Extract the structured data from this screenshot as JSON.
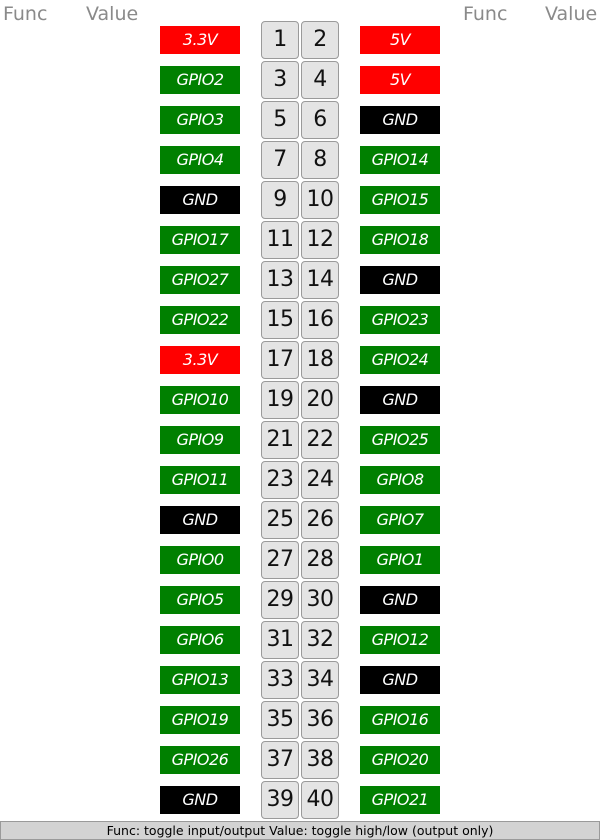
{
  "header": {
    "left_func": "Func",
    "left_value": "Value",
    "right_func": "Func",
    "right_value": "Value"
  },
  "colors": {
    "power": "#ff0000",
    "gpio": "#008000",
    "gnd": "#000000"
  },
  "pins": [
    {
      "left": {
        "label": "3.3V",
        "kind": "power",
        "pin": 1
      },
      "right": {
        "label": "5V",
        "kind": "power",
        "pin": 2
      }
    },
    {
      "left": {
        "label": "GPIO2",
        "kind": "gpio",
        "pin": 3
      },
      "right": {
        "label": "5V",
        "kind": "power",
        "pin": 4
      }
    },
    {
      "left": {
        "label": "GPIO3",
        "kind": "gpio",
        "pin": 5
      },
      "right": {
        "label": "GND",
        "kind": "gnd",
        "pin": 6
      }
    },
    {
      "left": {
        "label": "GPIO4",
        "kind": "gpio",
        "pin": 7
      },
      "right": {
        "label": "GPIO14",
        "kind": "gpio",
        "pin": 8
      }
    },
    {
      "left": {
        "label": "GND",
        "kind": "gnd",
        "pin": 9
      },
      "right": {
        "label": "GPIO15",
        "kind": "gpio",
        "pin": 10
      }
    },
    {
      "left": {
        "label": "GPIO17",
        "kind": "gpio",
        "pin": 11
      },
      "right": {
        "label": "GPIO18",
        "kind": "gpio",
        "pin": 12
      }
    },
    {
      "left": {
        "label": "GPIO27",
        "kind": "gpio",
        "pin": 13
      },
      "right": {
        "label": "GND",
        "kind": "gnd",
        "pin": 14
      }
    },
    {
      "left": {
        "label": "GPIO22",
        "kind": "gpio",
        "pin": 15
      },
      "right": {
        "label": "GPIO23",
        "kind": "gpio",
        "pin": 16
      }
    },
    {
      "left": {
        "label": "3.3V",
        "kind": "power",
        "pin": 17
      },
      "right": {
        "label": "GPIO24",
        "kind": "gpio",
        "pin": 18
      }
    },
    {
      "left": {
        "label": "GPIO10",
        "kind": "gpio",
        "pin": 19
      },
      "right": {
        "label": "GND",
        "kind": "gnd",
        "pin": 20
      }
    },
    {
      "left": {
        "label": "GPIO9",
        "kind": "gpio",
        "pin": 21
      },
      "right": {
        "label": "GPIO25",
        "kind": "gpio",
        "pin": 22
      }
    },
    {
      "left": {
        "label": "GPIO11",
        "kind": "gpio",
        "pin": 23
      },
      "right": {
        "label": "GPIO8",
        "kind": "gpio",
        "pin": 24
      }
    },
    {
      "left": {
        "label": "GND",
        "kind": "gnd",
        "pin": 25
      },
      "right": {
        "label": "GPIO7",
        "kind": "gpio",
        "pin": 26
      }
    },
    {
      "left": {
        "label": "GPIO0",
        "kind": "gpio",
        "pin": 27
      },
      "right": {
        "label": "GPIO1",
        "kind": "gpio",
        "pin": 28
      }
    },
    {
      "left": {
        "label": "GPIO5",
        "kind": "gpio",
        "pin": 29
      },
      "right": {
        "label": "GND",
        "kind": "gnd",
        "pin": 30
      }
    },
    {
      "left": {
        "label": "GPIO6",
        "kind": "gpio",
        "pin": 31
      },
      "right": {
        "label": "GPIO12",
        "kind": "gpio",
        "pin": 32
      }
    },
    {
      "left": {
        "label": "GPIO13",
        "kind": "gpio",
        "pin": 33
      },
      "right": {
        "label": "GND",
        "kind": "gnd",
        "pin": 34
      }
    },
    {
      "left": {
        "label": "GPIO19",
        "kind": "gpio",
        "pin": 35
      },
      "right": {
        "label": "GPIO16",
        "kind": "gpio",
        "pin": 36
      }
    },
    {
      "left": {
        "label": "GPIO26",
        "kind": "gpio",
        "pin": 37
      },
      "right": {
        "label": "GPIO20",
        "kind": "gpio",
        "pin": 38
      }
    },
    {
      "left": {
        "label": "GND",
        "kind": "gnd",
        "pin": 39
      },
      "right": {
        "label": "GPIO21",
        "kind": "gpio",
        "pin": 40
      }
    }
  ],
  "footer": {
    "text": "Func: toggle input/output Value: toggle high/low (output only)"
  }
}
